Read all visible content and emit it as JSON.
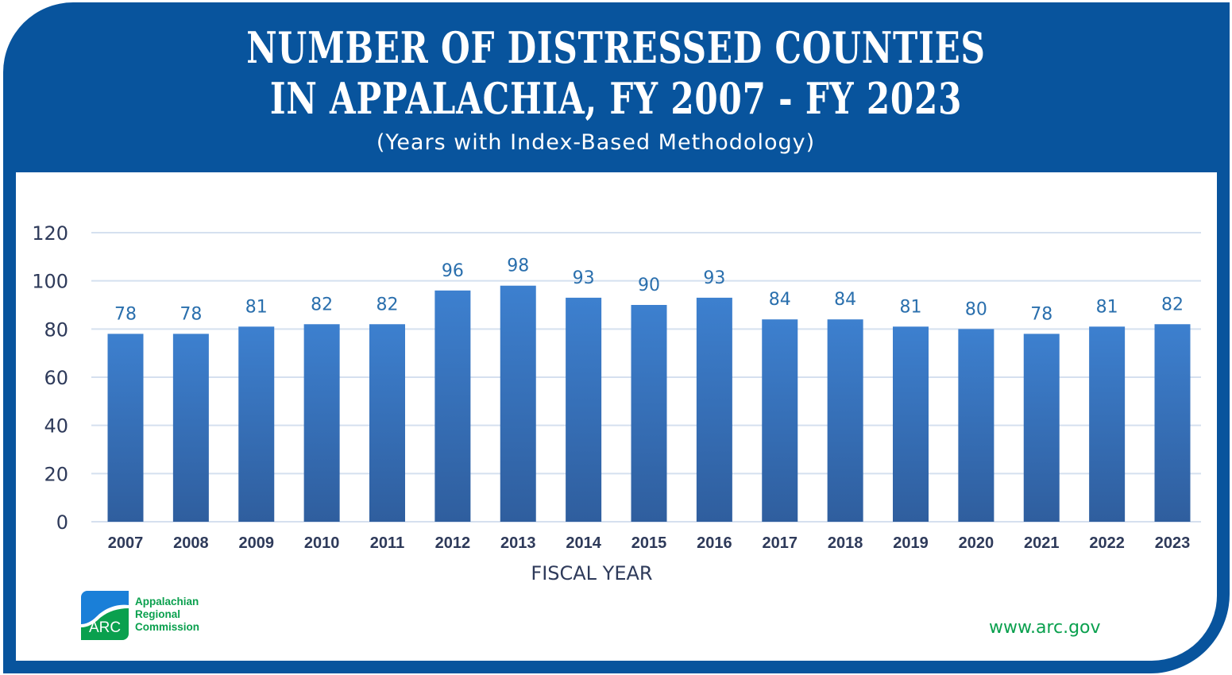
{
  "header": {
    "title_line1": "NUMBER OF DISTRESSED COUNTIES",
    "title_line2": "IN APPALACHIA, FY 2007 - FY 2023",
    "subtitle": "(Years with Index-Based Methodology)"
  },
  "chart_data": {
    "type": "bar",
    "title": "NUMBER OF DISTRESSED COUNTIES IN APPALACHIA, FY 2007 - FY 2023",
    "subtitle": "(Years with Index-Based Methodology)",
    "xlabel": "FISCAL YEAR",
    "ylabel": "",
    "categories": [
      "2007",
      "2008",
      "2009",
      "2010",
      "2011",
      "2012",
      "2013",
      "2014",
      "2015",
      "2016",
      "2017",
      "2018",
      "2019",
      "2020",
      "2021",
      "2022",
      "2023"
    ],
    "values": [
      78,
      78,
      81,
      82,
      82,
      96,
      98,
      93,
      90,
      93,
      84,
      84,
      81,
      80,
      78,
      81,
      82
    ],
    "ylim": [
      0,
      120
    ],
    "yticks": [
      0,
      20,
      40,
      60,
      80,
      100,
      120
    ],
    "grid": true,
    "data_labels": true,
    "colors": {
      "bar_top": "#3d80cf",
      "bar_bottom": "#2f5e9e",
      "label": "#2a6fad",
      "grid": "#d5e0ef",
      "axis_text": "#2e3a5a",
      "frame": "#08549d"
    }
  },
  "footer": {
    "logo_mark": "ARC",
    "logo_line1": "Appalachian",
    "logo_line2": "Regional",
    "logo_line3": "Commission",
    "url": "www.arc.gov"
  }
}
